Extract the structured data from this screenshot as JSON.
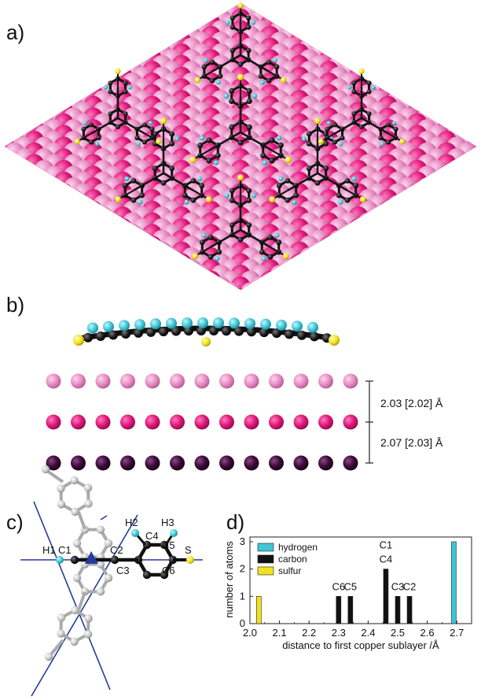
{
  "panels": {
    "a": {
      "label": "a)"
    },
    "b": {
      "label": "b)",
      "spacing_top": "2.03 [2.02] Å",
      "spacing_bottom": "2.07 [2.03] Å"
    },
    "c": {
      "label": "c)",
      "atoms": [
        "H1",
        "C1",
        "C2",
        "C3",
        "H2",
        "C4",
        "H3",
        "C5",
        "C6",
        "S"
      ]
    },
    "d": {
      "label": "d)"
    }
  },
  "colors": {
    "cu_top": "#e98dc4",
    "cu_mid": "#e0197d",
    "cu_bottom": "#3d0a3a",
    "carbon": "#1a1a1a",
    "hydrogen": "#3cc6d6",
    "sulfur": "#f2e21c",
    "grey_atom": "#c8c8c8",
    "symmetry_line": "#233a9c"
  },
  "chart_data": {
    "type": "bar",
    "title": "",
    "xlabel": "distance to first copper sublayer /Å",
    "ylabel": "number of atoms",
    "xlim": [
      2.0,
      2.75
    ],
    "ylim": [
      0,
      3
    ],
    "xticks": [
      "2.0",
      "2.1",
      "2.2",
      "2.3",
      "2.4",
      "2.5",
      "2.6",
      "2.7"
    ],
    "yticks": [
      "0",
      "1",
      "2",
      "3"
    ],
    "legend": {
      "position": "top-left",
      "entries": [
        "hydrogen",
        "carbon",
        "sulfur"
      ]
    },
    "series": [
      {
        "name": "hydrogen",
        "color": "#3cc6d6",
        "x": [
          2.69
        ],
        "values": [
          3
        ]
      },
      {
        "name": "carbon",
        "color": "#111111",
        "x": [
          2.3,
          2.34,
          2.46,
          2.5,
          2.54
        ],
        "values": [
          1,
          1,
          2,
          1,
          1
        ]
      },
      {
        "name": "sulfur",
        "color": "#f2e21c",
        "x": [
          2.03
        ],
        "values": [
          1
        ]
      }
    ],
    "annotations": [
      {
        "text": "C6",
        "x": 2.3,
        "y": 1
      },
      {
        "text": "C5",
        "x": 2.34,
        "y": 1
      },
      {
        "text": "C1",
        "x": 2.46,
        "y": 2,
        "line": 2
      },
      {
        "text": "C4",
        "x": 2.46,
        "y": 2,
        "line": 1
      },
      {
        "text": "C3",
        "x": 2.5,
        "y": 1
      },
      {
        "text": "C2",
        "x": 2.54,
        "y": 1
      }
    ]
  }
}
